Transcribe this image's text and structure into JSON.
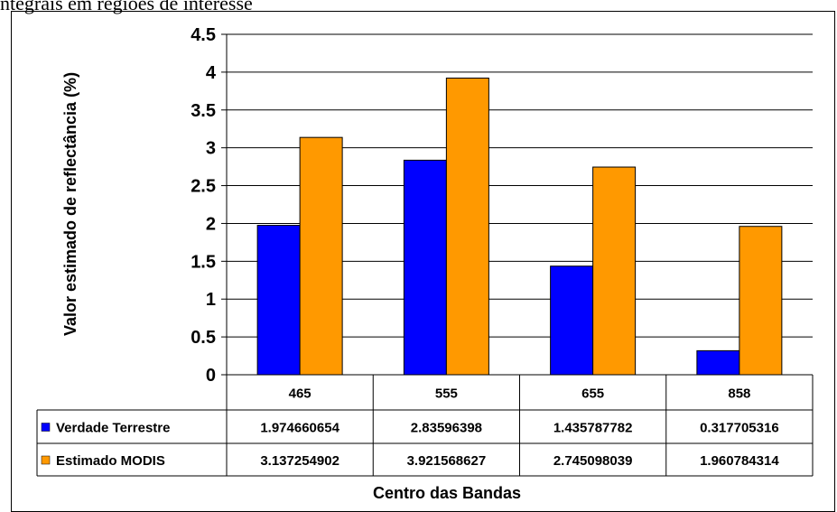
{
  "caption": "ntegrais em regiões de interesse",
  "chart_data": {
    "type": "bar",
    "categories": [
      "465",
      "555",
      "655",
      "858"
    ],
    "series": [
      {
        "name": "Verdade Terrestre",
        "color": "#0000ff",
        "values": [
          1.974660654,
          2.83596398,
          1.435787782,
          0.317705316
        ],
        "labels": [
          "1.974660654",
          "2.83596398",
          "1.435787782",
          "0.317705316"
        ]
      },
      {
        "name": "Estimado MODIS",
        "color": "#ff9900",
        "values": [
          3.137254902,
          3.921568627,
          2.745098039,
          1.960784314
        ],
        "labels": [
          "3.137254902",
          "3.921568627",
          "2.745098039",
          "1.960784314"
        ]
      }
    ],
    "yticks": [
      "0",
      "0.5",
      "1",
      "1.5",
      "2",
      "2.5",
      "3",
      "3.5",
      "4",
      "4.5"
    ],
    "ylim": [
      0,
      4.5
    ],
    "xlabel": "Centro das Bandas",
    "ylabel": "Valor estimado de reflectância (%)",
    "grid": true,
    "legend": "data-table-left"
  }
}
